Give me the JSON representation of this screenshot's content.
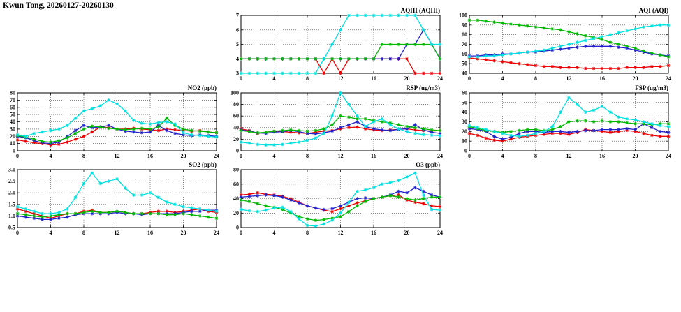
{
  "title": "Kwun Tong, 20260127-20260130",
  "colors": {
    "red": "#ee0000",
    "blue": "#2222cc",
    "green": "#00b800",
    "cyan": "#00e0e0"
  },
  "x_hours": [
    0,
    1,
    2,
    3,
    4,
    5,
    6,
    7,
    8,
    9,
    10,
    11,
    12,
    13,
    14,
    15,
    16,
    17,
    18,
    19,
    20,
    21,
    22,
    23,
    24
  ],
  "chart_data": [
    {
      "id": "aqhi",
      "type": "line",
      "title": "AQHI (AQHI)",
      "x_range": [
        0,
        24
      ],
      "y_range": [
        3,
        7
      ],
      "x_ticks": [
        0,
        4,
        8,
        12,
        16,
        20,
        24
      ],
      "x_tick_labels": [
        "0",
        "4",
        "8",
        "12",
        "16",
        "20",
        "24"
      ],
      "y_ticks": [
        3,
        4,
        5,
        6,
        7
      ],
      "y_tick_labels": [
        "3",
        "4",
        "5",
        "6",
        "7"
      ],
      "grid": true,
      "legend": "none",
      "series": [
        {
          "name": "red",
          "values": [
            4,
            4,
            4,
            4,
            4,
            4,
            4,
            4,
            4,
            4,
            3,
            4,
            3,
            4,
            4,
            4,
            4,
            4,
            4,
            4,
            4,
            3,
            3,
            3,
            3
          ]
        },
        {
          "name": "blue",
          "values": [
            4,
            4,
            4,
            4,
            4,
            4,
            4,
            4,
            4,
            4,
            4,
            4,
            4,
            4,
            4,
            4,
            4,
            4,
            4,
            4,
            5,
            5,
            6,
            5,
            4
          ]
        },
        {
          "name": "green",
          "values": [
            4,
            4,
            4,
            4,
            4,
            4,
            4,
            4,
            4,
            4,
            4,
            4,
            4,
            4,
            4,
            4,
            4,
            5,
            5,
            5,
            5,
            5,
            5,
            5,
            4
          ]
        },
        {
          "name": "cyan",
          "values": [
            3,
            3,
            3,
            3,
            3,
            3,
            3,
            3,
            3,
            3,
            4,
            5,
            6,
            7,
            7,
            7,
            7,
            7,
            7,
            7,
            7,
            7,
            6,
            5,
            5
          ]
        }
      ]
    },
    {
      "id": "aqi",
      "type": "line",
      "title": "AQI (AQI)",
      "x_range": [
        0,
        24
      ],
      "y_range": [
        40,
        100
      ],
      "x_ticks": [
        0,
        4,
        8,
        12,
        16,
        20,
        24
      ],
      "x_tick_labels": [
        "0",
        "4",
        "8",
        "12",
        "16",
        "20",
        "24"
      ],
      "y_ticks": [
        40,
        50,
        60,
        70,
        80,
        90,
        100
      ],
      "y_tick_labels": [
        "40",
        "50",
        "60",
        "70",
        "80",
        "90",
        "100"
      ],
      "grid": true,
      "legend": "none",
      "series": [
        {
          "name": "red",
          "values": [
            56,
            55,
            54,
            53,
            52,
            51,
            50,
            49,
            48,
            47,
            47,
            46,
            46,
            46,
            45,
            45,
            45,
            45,
            45,
            46,
            46,
            46,
            47,
            47,
            48
          ]
        },
        {
          "name": "blue",
          "values": [
            58,
            58,
            59,
            59,
            60,
            60,
            61,
            62,
            62,
            63,
            64,
            65,
            66,
            67,
            68,
            68,
            68,
            68,
            67,
            66,
            64,
            62,
            60,
            59,
            58
          ]
        },
        {
          "name": "green",
          "values": [
            95,
            95,
            94,
            93,
            92,
            91,
            90,
            89,
            88,
            87,
            86,
            85,
            83,
            81,
            79,
            77,
            75,
            72,
            70,
            68,
            66,
            63,
            61,
            59,
            57
          ]
        },
        {
          "name": "cyan",
          "values": [
            57,
            57,
            58,
            58,
            59,
            60,
            61,
            62,
            63,
            64,
            66,
            68,
            70,
            72,
            74,
            76,
            78,
            80,
            82,
            84,
            86,
            88,
            89,
            90,
            90
          ]
        }
      ]
    },
    {
      "id": "no2",
      "type": "line",
      "title": "NO2 (ppb)",
      "x_range": [
        0,
        24
      ],
      "y_range": [
        0,
        80
      ],
      "x_ticks": [
        0,
        4,
        8,
        12,
        16,
        20,
        24
      ],
      "x_tick_labels": [
        "0",
        "4",
        "8",
        "12",
        "16",
        "20",
        "24"
      ],
      "y_ticks": [
        0,
        10,
        20,
        30,
        40,
        50,
        60,
        70,
        80
      ],
      "y_tick_labels": [
        "0",
        "10",
        "20",
        "30",
        "40",
        "50",
        "60",
        "70",
        "80"
      ],
      "grid": true,
      "legend": "none",
      "series": [
        {
          "name": "red",
          "values": [
            15,
            13,
            11,
            10,
            8,
            9,
            12,
            16,
            20,
            26,
            33,
            32,
            30,
            30,
            31,
            30,
            29,
            28,
            30,
            29,
            28,
            27,
            28,
            26,
            25
          ]
        },
        {
          "name": "blue",
          "values": [
            20,
            18,
            14,
            11,
            10,
            12,
            20,
            28,
            35,
            32,
            33,
            35,
            30,
            27,
            26,
            25,
            26,
            35,
            28,
            24,
            22,
            21,
            22,
            21,
            20
          ]
        },
        {
          "name": "green",
          "values": [
            21,
            19,
            16,
            13,
            12,
            14,
            18,
            24,
            30,
            34,
            33,
            31,
            30,
            29,
            30,
            31,
            30,
            33,
            45,
            35,
            30,
            28,
            27,
            26,
            25
          ]
        },
        {
          "name": "cyan",
          "values": [
            22,
            20,
            24,
            26,
            28,
            30,
            35,
            45,
            55,
            58,
            62,
            70,
            65,
            55,
            42,
            38,
            37,
            39,
            40,
            37,
            25,
            22,
            21,
            20,
            19
          ]
        }
      ]
    },
    {
      "id": "rsp",
      "type": "line",
      "title": "RSP (ug/m3)",
      "x_range": [
        0,
        24
      ],
      "y_range": [
        0,
        100
      ],
      "x_ticks": [
        0,
        4,
        8,
        12,
        16,
        20,
        24
      ],
      "x_tick_labels": [
        "0",
        "4",
        "8",
        "12",
        "16",
        "20",
        "24"
      ],
      "y_ticks": [
        0,
        20,
        40,
        60,
        80,
        100
      ],
      "y_tick_labels": [
        "0",
        "20",
        "40",
        "60",
        "80",
        "100"
      ],
      "grid": true,
      "legend": "none",
      "series": [
        {
          "name": "red",
          "values": [
            38,
            35,
            30,
            32,
            34,
            33,
            32,
            31,
            30,
            32,
            34,
            35,
            38,
            40,
            41,
            38,
            36,
            35,
            36,
            37,
            38,
            36,
            35,
            34,
            35
          ]
        },
        {
          "name": "blue",
          "values": [
            36,
            34,
            31,
            30,
            32,
            33,
            35,
            33,
            30,
            29,
            31,
            34,
            40,
            45,
            50,
            42,
            38,
            36,
            35,
            37,
            38,
            45,
            36,
            32,
            30
          ]
        },
        {
          "name": "green",
          "values": [
            35,
            33,
            31,
            32,
            34,
            35,
            36,
            35,
            34,
            35,
            38,
            45,
            60,
            58,
            55,
            55,
            52,
            50,
            48,
            45,
            42,
            40,
            38,
            36,
            35
          ]
        },
        {
          "name": "cyan",
          "values": [
            15,
            13,
            11,
            10,
            10,
            11,
            13,
            15,
            18,
            22,
            30,
            60,
            100,
            80,
            60,
            42,
            50,
            55,
            45,
            38,
            33,
            30,
            28,
            27,
            26
          ]
        }
      ]
    },
    {
      "id": "fsp",
      "type": "line",
      "title": "FSP (ug/m3)",
      "x_range": [
        0,
        24
      ],
      "y_range": [
        0,
        60
      ],
      "x_ticks": [
        0,
        4,
        8,
        12,
        16,
        20,
        24
      ],
      "x_tick_labels": [
        "0",
        "4",
        "8",
        "12",
        "16",
        "20",
        "24"
      ],
      "y_ticks": [
        0,
        10,
        20,
        30,
        40,
        50,
        60
      ],
      "y_tick_labels": [
        "0",
        "10",
        "20",
        "30",
        "40",
        "50",
        "60"
      ],
      "grid": true,
      "legend": "none",
      "series": [
        {
          "name": "red",
          "values": [
            18,
            16,
            13,
            11,
            10,
            12,
            14,
            15,
            16,
            17,
            18,
            18,
            17,
            19,
            22,
            21,
            20,
            19,
            20,
            21,
            20,
            18,
            16,
            15,
            15
          ]
        },
        {
          "name": "blue",
          "values": [
            23,
            22,
            20,
            15,
            12,
            14,
            18,
            20,
            20,
            19,
            20,
            20,
            19,
            20,
            21,
            21,
            22,
            22,
            22,
            23,
            22,
            28,
            24,
            20,
            19
          ]
        },
        {
          "name": "green",
          "values": [
            25,
            23,
            21,
            20,
            19,
            20,
            21,
            22,
            22,
            21,
            22,
            25,
            30,
            31,
            31,
            30,
            31,
            30,
            30,
            29,
            28,
            28,
            27,
            28,
            28
          ]
        },
        {
          "name": "cyan",
          "values": [
            26,
            24,
            22,
            20,
            18,
            16,
            15,
            16,
            18,
            20,
            25,
            40,
            55,
            48,
            40,
            42,
            46,
            40,
            35,
            33,
            32,
            30,
            28,
            26,
            25
          ]
        }
      ]
    },
    {
      "id": "so2",
      "type": "line",
      "title": "SO2 (ppb)",
      "x_range": [
        0,
        24
      ],
      "y_range": [
        0.5,
        3.0
      ],
      "x_ticks": [
        0,
        4,
        8,
        12,
        16,
        20,
        24
      ],
      "x_tick_labels": [
        "0",
        "4",
        "8",
        "12",
        "16",
        "20",
        "24"
      ],
      "y_ticks": [
        0.5,
        1.0,
        1.5,
        2.0,
        2.5,
        3.0
      ],
      "y_tick_labels": [
        "0.5",
        "1.0",
        "1.5",
        "2.0",
        "2.5",
        "3.0"
      ],
      "grid": true,
      "legend": "none",
      "series": [
        {
          "name": "red",
          "values": [
            1.3,
            1.2,
            1.1,
            1.0,
            0.9,
            1.0,
            1.1,
            1.1,
            1.2,
            1.25,
            1.15,
            1.15,
            1.2,
            1.15,
            1.1,
            1.1,
            1.15,
            1.2,
            1.2,
            1.15,
            1.2,
            1.25,
            1.3,
            1.2,
            1.15
          ]
        },
        {
          "name": "blue",
          "values": [
            1.0,
            0.95,
            0.9,
            0.85,
            0.85,
            0.9,
            0.95,
            1.05,
            1.1,
            1.1,
            1.1,
            1.1,
            1.15,
            1.1,
            1.1,
            1.05,
            1.1,
            1.1,
            1.1,
            1.1,
            1.15,
            1.2,
            1.2,
            1.25,
            1.25
          ]
        },
        {
          "name": "green",
          "values": [
            1.1,
            1.05,
            1.0,
            0.95,
            1.0,
            1.05,
            1.1,
            1.1,
            1.15,
            1.2,
            1.15,
            1.15,
            1.2,
            1.15,
            1.1,
            1.1,
            1.1,
            1.1,
            1.05,
            1.05,
            1.1,
            1.05,
            1.0,
            0.95,
            0.9
          ]
        },
        {
          "name": "cyan",
          "values": [
            1.4,
            1.3,
            1.2,
            1.1,
            1.1,
            1.15,
            1.3,
            1.8,
            2.4,
            2.85,
            2.4,
            2.5,
            2.6,
            2.2,
            1.9,
            1.9,
            2.0,
            1.8,
            1.6,
            1.5,
            1.4,
            1.35,
            1.3,
            1.25,
            1.2
          ]
        }
      ]
    },
    {
      "id": "o3",
      "type": "line",
      "title": "O3 (ppb)",
      "x_range": [
        0,
        24
      ],
      "y_range": [
        0,
        80
      ],
      "x_ticks": [
        0,
        4,
        8,
        12,
        16,
        20,
        24
      ],
      "x_tick_labels": [
        "0",
        "4",
        "8",
        "12",
        "16",
        "20",
        "24"
      ],
      "y_ticks": [
        0,
        20,
        40,
        60,
        80
      ],
      "y_tick_labels": [
        "0",
        "20",
        "40",
        "60",
        "80"
      ],
      "grid": true,
      "legend": "none",
      "series": [
        {
          "name": "red",
          "values": [
            45,
            46,
            48,
            46,
            45,
            43,
            40,
            35,
            30,
            27,
            24,
            22,
            26,
            30,
            34,
            37,
            40,
            42,
            44,
            45,
            38,
            35,
            33,
            30,
            29
          ]
        },
        {
          "name": "blue",
          "values": [
            42,
            43,
            44,
            45,
            44,
            42,
            38,
            34,
            30,
            27,
            25,
            26,
            30,
            35,
            40,
            41,
            40,
            42,
            45,
            50,
            48,
            55,
            50,
            45,
            42
          ]
        },
        {
          "name": "green",
          "values": [
            38,
            36,
            33,
            30,
            28,
            25,
            20,
            15,
            12,
            10,
            11,
            13,
            15,
            22,
            30,
            36,
            40,
            42,
            44,
            42,
            40,
            38,
            40,
            42,
            42
          ]
        },
        {
          "name": "cyan",
          "values": [
            25,
            23,
            22,
            24,
            27,
            28,
            22,
            12,
            3,
            2,
            5,
            10,
            20,
            35,
            50,
            52,
            55,
            60,
            62,
            65,
            70,
            75,
            45,
            25,
            24
          ]
        }
      ]
    }
  ]
}
